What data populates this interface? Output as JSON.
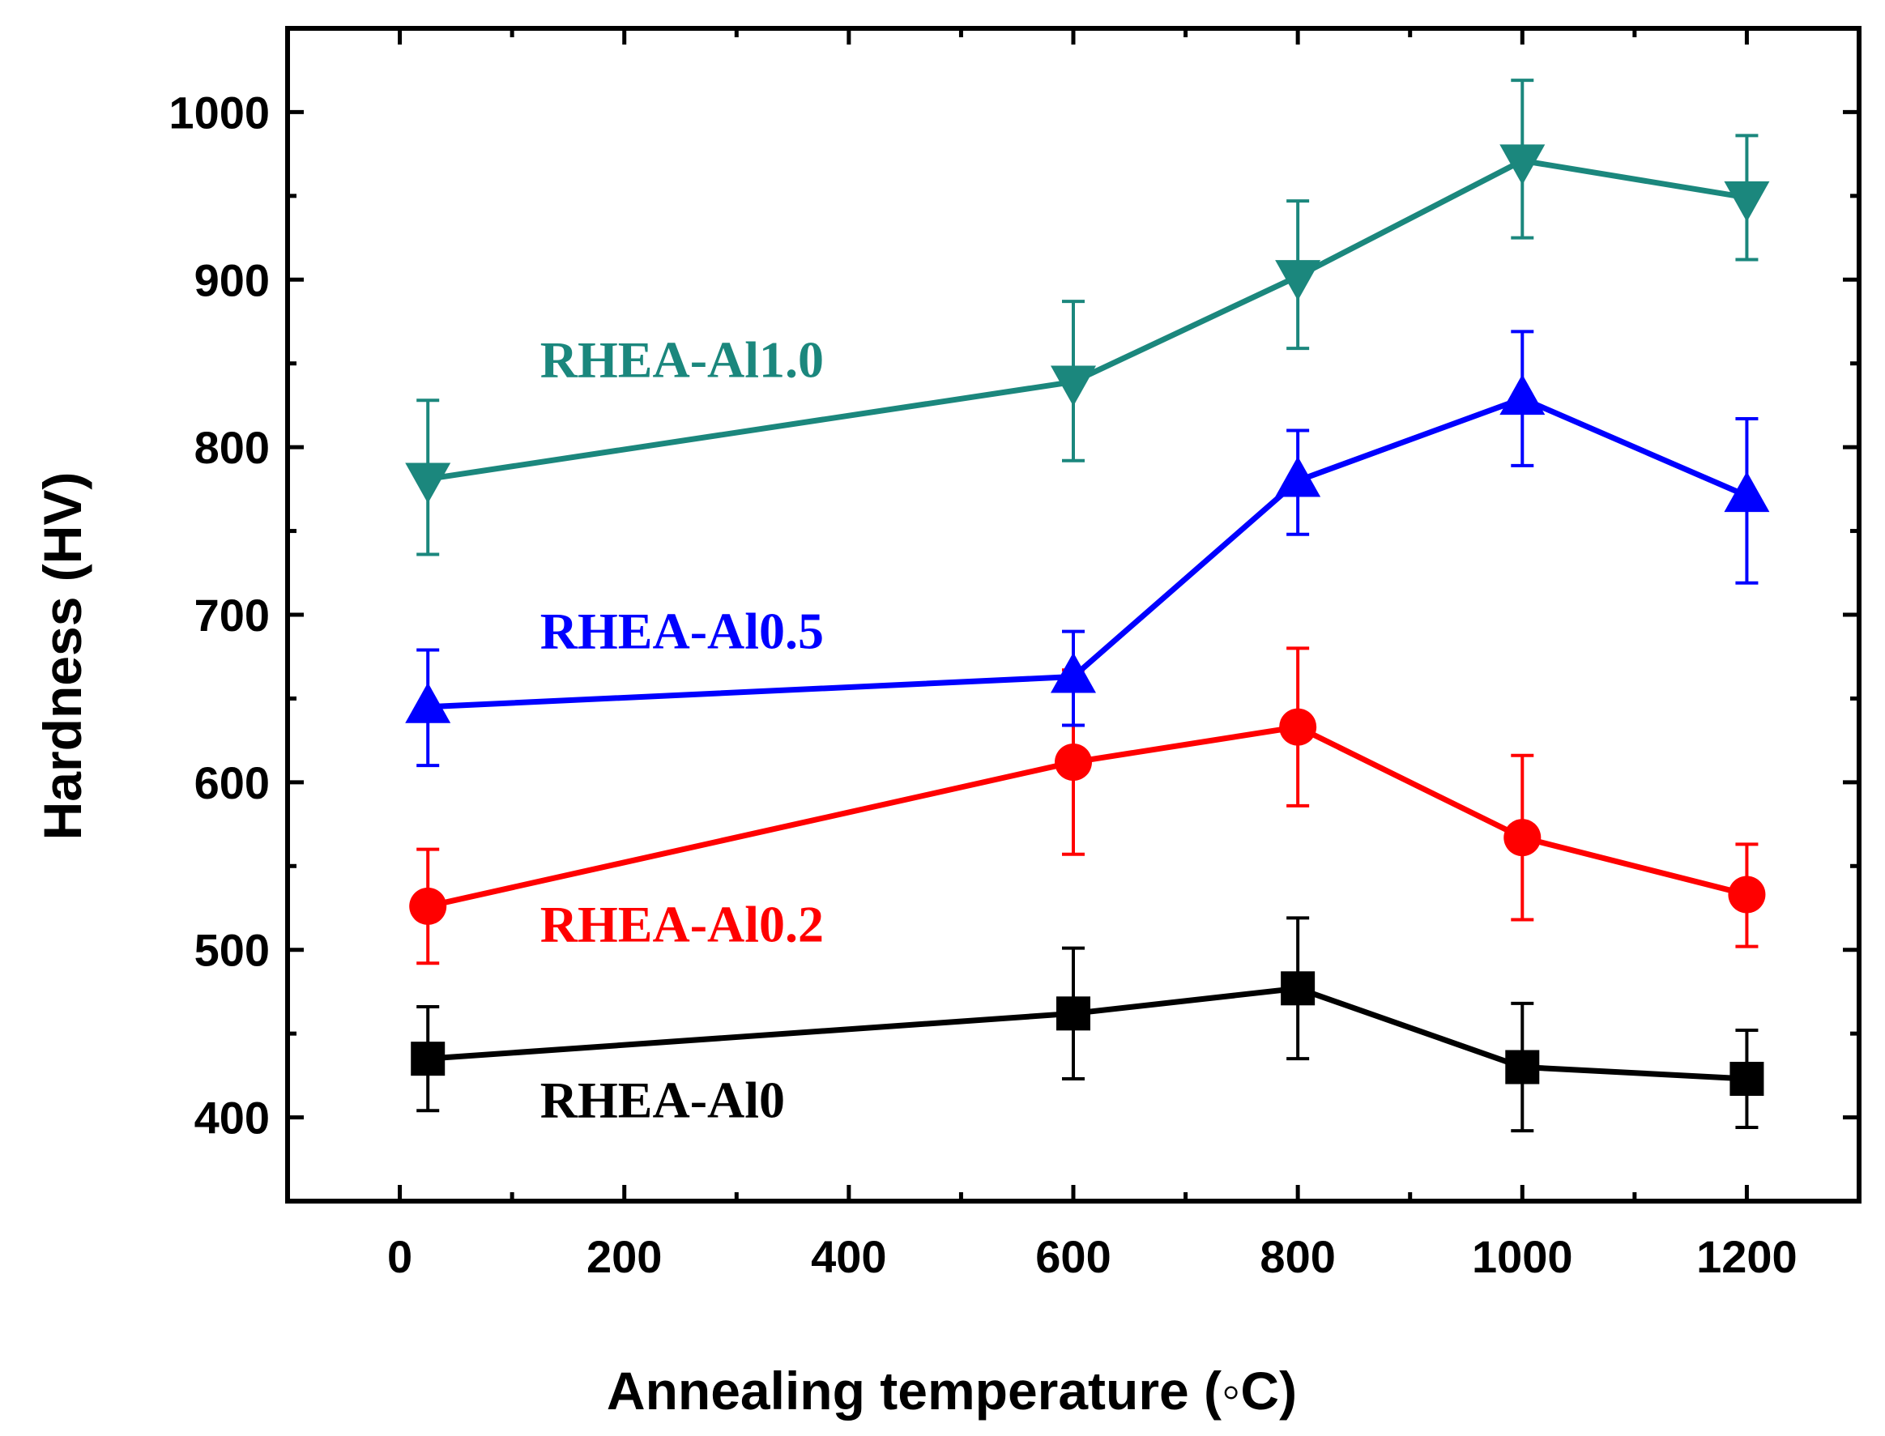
{
  "chart_data": {
    "type": "line",
    "title": "",
    "xlabel": "Annealing temperature (◦C)",
    "ylabel": "Hardness (HV)",
    "xlim": [
      -100,
      1300
    ],
    "ylim": [
      350,
      1050
    ],
    "x_ticks": [
      0,
      200,
      400,
      600,
      800,
      1000,
      1200
    ],
    "x_tick_labels": [
      "0",
      "200",
      "400",
      "600",
      "800",
      "1000",
      "1200"
    ],
    "y_ticks": [
      400,
      500,
      600,
      700,
      800,
      900,
      1000
    ],
    "y_tick_labels": [
      "400",
      "500",
      "600",
      "700",
      "800",
      "900",
      "1000"
    ],
    "grid": false,
    "legend": "inline labels",
    "series": [
      {
        "name": "RHEA-Al0",
        "color": "#000000",
        "marker": "square",
        "x": [
          25,
          600,
          800,
          1000,
          1200
        ],
        "values": [
          435,
          462,
          477,
          430,
          423
        ],
        "err_upper": [
          31,
          39,
          42,
          38,
          29
        ],
        "err_lower": [
          31,
          39,
          42,
          38,
          29
        ],
        "label_anchor": [
          125,
          400
        ]
      },
      {
        "name": "RHEA-Al0.2",
        "color": "#ff0000",
        "marker": "circle",
        "x": [
          25,
          600,
          800,
          1000,
          1200
        ],
        "values": [
          526,
          612,
          633,
          567,
          533
        ],
        "err_upper": [
          34,
          55,
          47,
          49,
          30
        ],
        "err_lower": [
          34,
          55,
          47,
          49,
          31
        ],
        "label_anchor": [
          125,
          505
        ]
      },
      {
        "name": "RHEA-Al0.5",
        "color": "#0000ff",
        "marker": "triangle-up",
        "x": [
          25,
          600,
          800,
          1000,
          1200
        ],
        "values": [
          645,
          663,
          780,
          829,
          771
        ],
        "err_upper": [
          34,
          27,
          30,
          40,
          46
        ],
        "err_lower": [
          35,
          29,
          32,
          40,
          52
        ],
        "label_anchor": [
          125,
          680
        ]
      },
      {
        "name": "RHEA-Al1.0",
        "color": "#1b877d",
        "marker": "triangle-down",
        "x": [
          25,
          600,
          800,
          1000,
          1200
        ],
        "values": [
          781,
          839,
          902,
          971,
          949
        ],
        "err_upper": [
          47,
          48,
          45,
          48,
          37
        ],
        "err_lower": [
          45,
          47,
          43,
          46,
          37
        ],
        "label_anchor": [
          125,
          842
        ]
      }
    ]
  }
}
